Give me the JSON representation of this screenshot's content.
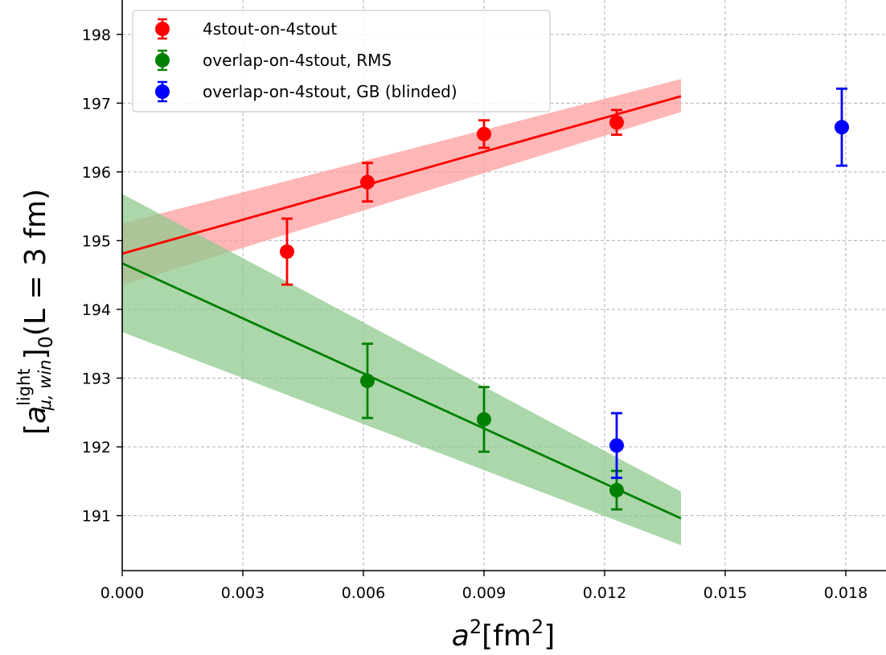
{
  "chart_data": {
    "type": "scatter",
    "xlabel": {
      "base": "a",
      "sup": "2",
      "unit": "[fm",
      "unit_sup": "2",
      "unit_close": "]"
    },
    "ylabel": {
      "open": "[a",
      "sup": "light",
      "sub": "μ, win",
      "close": "]",
      "close_sub": "0",
      "tail": "(L = 3 fm)"
    },
    "xlim": [
      0.0,
      0.019
    ],
    "ylim": [
      190.2,
      198.5
    ],
    "x_ticks": [
      0.0,
      0.003,
      0.006,
      0.009,
      0.012,
      0.015,
      0.018
    ],
    "x_tick_labels": [
      "0.000",
      "0.003",
      "0.006",
      "0.009",
      "0.012",
      "0.015",
      "0.018"
    ],
    "y_ticks": [
      191,
      192,
      193,
      194,
      195,
      196,
      197,
      198
    ],
    "y_tick_labels": [
      "191",
      "192",
      "193",
      "194",
      "195",
      "196",
      "197",
      "198"
    ],
    "grid": true,
    "legend_position": "top-left",
    "series": [
      {
        "name": "4stout-on-4stout",
        "color": "#ff0000",
        "band_color": "#ff9e9e",
        "points": [
          {
            "x": 0.0041,
            "y": 194.84,
            "err": 0.48
          },
          {
            "x": 0.0061,
            "y": 195.85,
            "err": 0.28
          },
          {
            "x": 0.009,
            "y": 196.55,
            "err": 0.2
          },
          {
            "x": 0.0123,
            "y": 196.72,
            "err": 0.18
          }
        ],
        "fit": {
          "x": [
            0.0,
            0.0139
          ],
          "y": [
            194.81,
            197.1
          ]
        },
        "band": {
          "x": [
            0.0,
            0.0139
          ],
          "upper": [
            195.25,
            197.35
          ],
          "lower": [
            194.35,
            196.87
          ]
        }
      },
      {
        "name": "overlap-on-4stout, RMS",
        "color": "#008000",
        "band_color": "#8fca8f",
        "points": [
          {
            "x": 0.0061,
            "y": 192.96,
            "err": 0.54
          },
          {
            "x": 0.009,
            "y": 192.4,
            "err": 0.47
          },
          {
            "x": 0.0123,
            "y": 191.37,
            "err": 0.28
          }
        ],
        "fit": {
          "x": [
            0.0,
            0.0139
          ],
          "y": [
            194.67,
            190.96
          ]
        },
        "band": {
          "x": [
            0.0,
            0.0139
          ],
          "upper": [
            195.68,
            191.35
          ],
          "lower": [
            193.67,
            190.57
          ]
        }
      },
      {
        "name": "overlap-on-4stout, GB (blinded)",
        "color": "#0000ff",
        "points": [
          {
            "x": 0.0123,
            "y": 192.02,
            "err": 0.47
          },
          {
            "x": 0.0179,
            "y": 196.65,
            "err": 0.56
          }
        ]
      }
    ]
  }
}
